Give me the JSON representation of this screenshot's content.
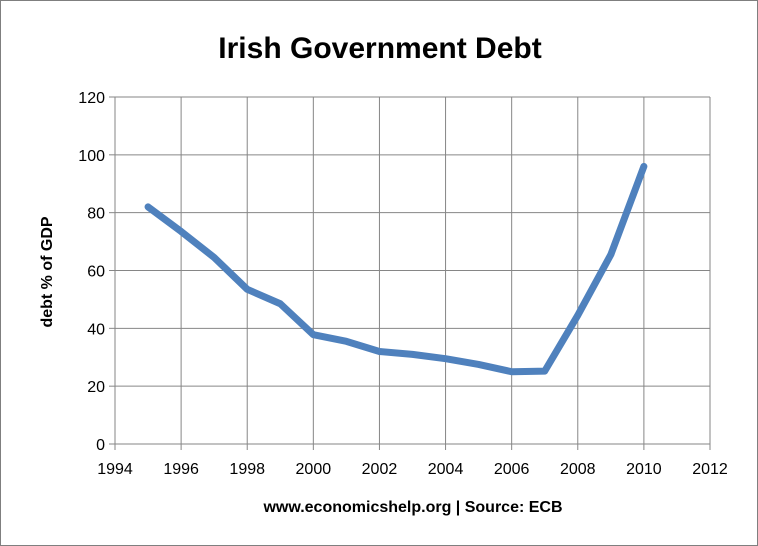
{
  "chart_data": {
    "type": "line",
    "title": "Irish Government Debt",
    "xlabel": "www.economicshelp.org | Source: ECB",
    "ylabel": "debt % of GDP",
    "xlim": [
      1994,
      2012
    ],
    "ylim": [
      0,
      120
    ],
    "x_ticks": [
      "1994",
      "1996",
      "1998",
      "2000",
      "2002",
      "2004",
      "2006",
      "2008",
      "2010",
      "2012"
    ],
    "y_ticks": [
      "0",
      "20",
      "40",
      "60",
      "80",
      "100",
      "120"
    ],
    "grid": true,
    "legend": "none",
    "series": [
      {
        "color": "#4f81bd",
        "x": [
          1995,
          1996,
          1997,
          1998,
          1999,
          2000,
          2001,
          2002,
          2003,
          2004,
          2005,
          2006,
          2007,
          2008,
          2009,
          2010
        ],
        "y": [
          82,
          73.5,
          64.5,
          53.5,
          48.5,
          37.8,
          35.5,
          32,
          31,
          29.5,
          27.5,
          25,
          25.2,
          44.5,
          65.5,
          96
        ]
      }
    ]
  }
}
